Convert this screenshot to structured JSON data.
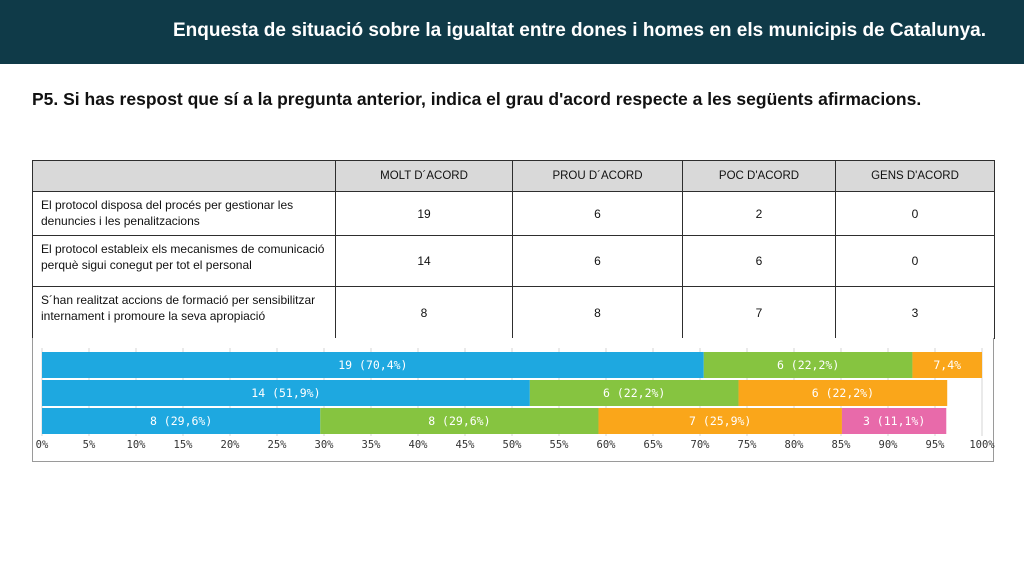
{
  "header": {
    "title": "Enquesta de situació sobre la  igualtat entre dones i homes en els municipis de Catalunya."
  },
  "question": "P5.  Si has respost que sí a la pregunta anterior, indica el grau d'acord respecte a les següents afirmacions.",
  "table": {
    "columns": [
      "",
      "MOLT D´ACORD",
      "PROU D´ACORD",
      "POC D'ACORD",
      "GENS D'ACORD"
    ],
    "rows": [
      {
        "label": "El protocol disposa del procés per gestionar les denuncies i les penalitzacions",
        "values": [
          "19",
          "6",
          "2",
          "0"
        ]
      },
      {
        "label": "El protocol estableix els mecanismes de comunicació perquè sigui conegut per tot el personal",
        "values": [
          "14",
          "6",
          "6",
          "0"
        ]
      },
      {
        "label": "S´han realitzat accions de formació per sensibilitzar internament i promoure la seva apropiació",
        "values": [
          "8",
          "8",
          "7",
          "3"
        ]
      }
    ]
  },
  "chart_data": {
    "type": "bar",
    "orientation": "horizontal",
    "stacked": true,
    "xlim": [
      0,
      100
    ],
    "x_ticks": [
      "0%",
      "5%",
      "10%",
      "15%",
      "20%",
      "25%",
      "30%",
      "35%",
      "40%",
      "45%",
      "50%",
      "55%",
      "60%",
      "65%",
      "70%",
      "75%",
      "80%",
      "85%",
      "90%",
      "95%",
      "100%"
    ],
    "grid": true,
    "colors": [
      "#1ea8e0",
      "#86c440",
      "#faa61a",
      "#e86aaa"
    ],
    "bars": [
      {
        "segments": [
          {
            "percent": 70.4,
            "label": "19 (70,4%)"
          },
          {
            "percent": 22.2,
            "label": "6 (22,2%)"
          },
          {
            "percent": 7.4,
            "label": "7,4%"
          },
          {
            "percent": 0,
            "label": ""
          }
        ]
      },
      {
        "segments": [
          {
            "percent": 51.9,
            "label": "14 (51,9%)"
          },
          {
            "percent": 22.2,
            "label": "6 (22,2%)"
          },
          {
            "percent": 22.2,
            "label": "6 (22,2%)"
          },
          {
            "percent": 0,
            "label": ""
          }
        ]
      },
      {
        "segments": [
          {
            "percent": 29.6,
            "label": "8 (29,6%)"
          },
          {
            "percent": 29.6,
            "label": "8 (29,6%)"
          },
          {
            "percent": 25.9,
            "label": "7 (25,9%)"
          },
          {
            "percent": 11.1,
            "label": "3 (11,1%)"
          }
        ]
      }
    ]
  }
}
